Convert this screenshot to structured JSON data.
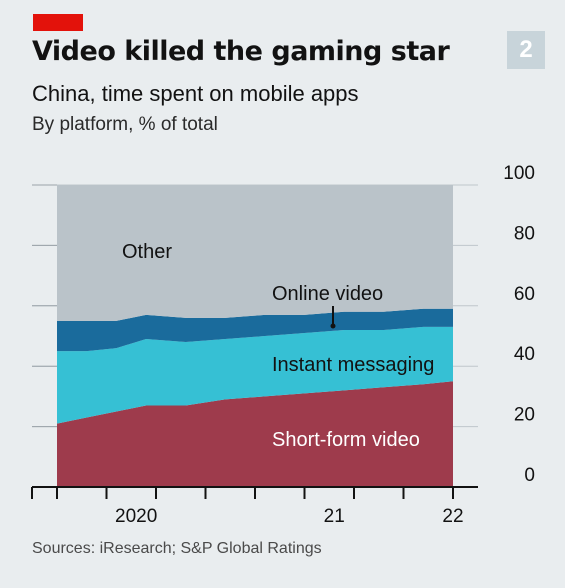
{
  "header": {
    "title": "Video killed the gaming star",
    "subtitle": "China, time spent on mobile apps",
    "unit_line": "By platform, % of total",
    "badge": "2"
  },
  "footer": {
    "source": "Sources: iResearch; S&P Global Ratings"
  },
  "chart_data": {
    "type": "area",
    "stacked": true,
    "x": [
      2019.6,
      2019.75,
      2019.9,
      2020.05,
      2020.25,
      2020.45,
      2020.65,
      2020.85,
      2021.05,
      2021.25,
      2021.45,
      2021.6
    ],
    "series": [
      {
        "name": "Short-form video",
        "color": "#9e3b4c",
        "values": [
          21,
          23,
          25,
          27,
          27,
          29,
          30,
          31,
          32,
          33,
          34,
          35
        ]
      },
      {
        "name": "Instant messaging",
        "color": "#36c0d4",
        "values": [
          24,
          22,
          21,
          22,
          21,
          20,
          20,
          20,
          20,
          19,
          19,
          18
        ]
      },
      {
        "name": "Online video",
        "color": "#1a6b9c",
        "values": [
          10,
          10,
          9,
          8,
          8,
          7,
          7,
          6,
          6,
          6,
          6,
          6
        ]
      },
      {
        "name": "Other",
        "color": "#bac3c9",
        "values": [
          45,
          45,
          45,
          43,
          44,
          44,
          43,
          43,
          42,
          42,
          41,
          41
        ]
      }
    ],
    "x_ticks": [
      {
        "value": 2020,
        "label": "2020"
      },
      {
        "value": 2021,
        "label": "21"
      },
      {
        "value": 2021.6,
        "label": "22"
      }
    ],
    "y_ticks": [
      0,
      20,
      40,
      60,
      80,
      100
    ],
    "ylim": [
      0,
      100
    ],
    "y_axis_side": "right",
    "grid": true,
    "area_labels": [
      "Other",
      "Online video",
      "Instant messaging",
      "Short-form video"
    ]
  }
}
